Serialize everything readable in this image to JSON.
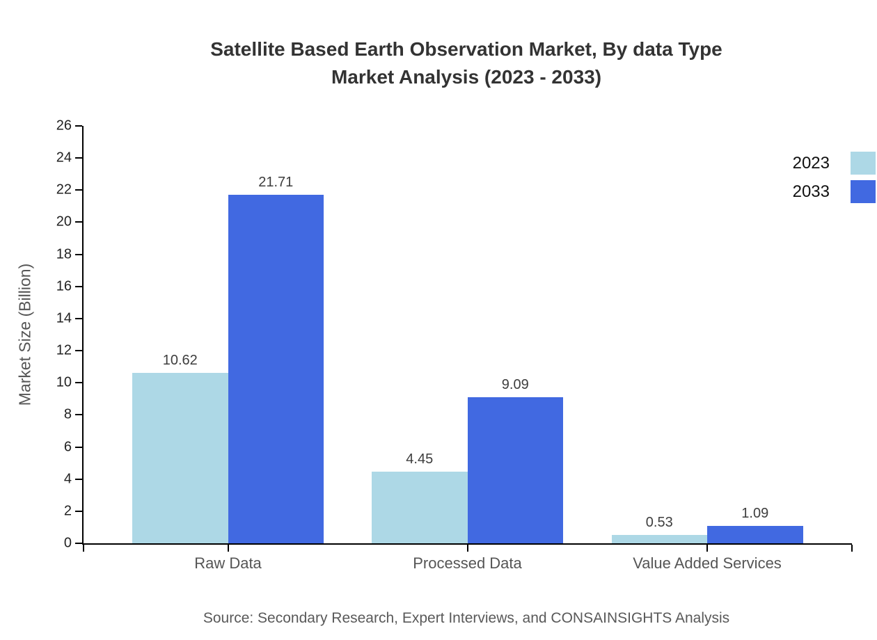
{
  "chart": {
    "title_lines": [
      "Satellite Based Earth Observation Market, By data Type",
      "Market Analysis (2023 - 2033)"
    ],
    "source": "Source: Secondary Research, Expert Interviews, and CONSAINSIGHTS Analysis"
  },
  "chart_data": {
    "type": "bar",
    "title": "Satellite Based Earth Observation Market, By data Type Market Analysis (2023 - 2033)",
    "categories": [
      "Raw Data",
      "Processed Data",
      "Value Added Services"
    ],
    "series": [
      {
        "name": "2023",
        "color": "#ADD8E6",
        "values": [
          10.62,
          4.45,
          0.53
        ]
      },
      {
        "name": "2033",
        "color": "#4169E1",
        "values": [
          21.71,
          9.09,
          1.09
        ]
      }
    ],
    "xlabel": "",
    "ylabel": "Market Size (Billion)",
    "ylim": [
      0,
      26
    ],
    "yticks": [
      0,
      2,
      4,
      6,
      8,
      10,
      12,
      14,
      16,
      18,
      20,
      22,
      24,
      26
    ],
    "grid": false,
    "legend_position": "top-right",
    "value_labels": true,
    "axis_color": "#000000",
    "title_color": "#333333",
    "label_color": "#555555"
  }
}
